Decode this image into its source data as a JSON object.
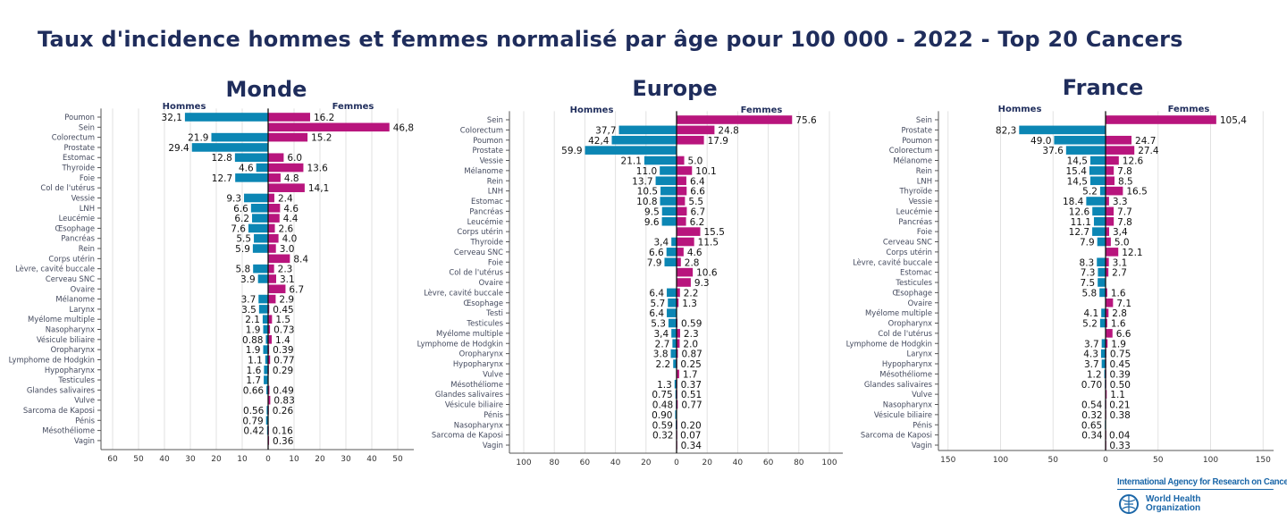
{
  "title": "Taux d'incidence hommes et femmes normalisé par âge pour 100 000 - 2022 - Top 20 Cancers",
  "colors": {
    "hommes": "#0b86b4",
    "femmes": "#b8157d",
    "title": "#1f2d5c",
    "grid": "#e2e2e2"
  },
  "logo": {
    "iarc": "International Agency for Research on Cancer",
    "who": "World Health Organization",
    "icon": "who-emblem-icon"
  },
  "chart_data": [
    {
      "type": "bar",
      "orientation": "horizontal-butterfly",
      "title": "Monde",
      "left_label": "Hommes",
      "right_label": "Femmes",
      "xlim": [
        -65,
        56
      ],
      "ticks": [
        -60,
        -50,
        -40,
        -30,
        -20,
        -10,
        0,
        10,
        20,
        30,
        40,
        50
      ],
      "tick_labels": [
        "60",
        "50",
        "40",
        "30",
        "20",
        "10",
        "0",
        "10",
        "20",
        "30",
        "40",
        "50"
      ],
      "grid": true,
      "categories": [
        "Poumon",
        "Sein",
        "Colorectum",
        "Prostate",
        "Estomac",
        "Thyroide",
        "Foie",
        "Col de l'utérus",
        "Vessie",
        "LNH",
        "Leucémie",
        "Œsophage",
        "Pancréas",
        "Rein",
        "Corps utérin",
        "Lèvre, cavité buccale",
        "Cerveau SNC",
        "Ovaire",
        "Mélanome",
        "Larynx",
        "Myélome multiple",
        "Nasopharynx",
        "Vésicule biliaire",
        "Oropharynx",
        "Lymphome de Hodgkin",
        "Hypopharynx",
        "Testicules",
        "Glandes salivaires",
        "Vulve",
        "Sarcoma de Kaposi",
        "Pénis",
        "Mésothéliome",
        "Vagin"
      ],
      "series": [
        {
          "name": "Hommes",
          "values": [
            32.1,
            null,
            21.9,
            29.4,
            12.8,
            4.6,
            12.7,
            null,
            9.3,
            6.6,
            6.2,
            7.6,
            5.5,
            5.9,
            null,
            5.8,
            3.9,
            null,
            3.7,
            3.5,
            2.1,
            1.9,
            0.88,
            1.9,
            1.1,
            1.6,
            1.7,
            0.66,
            null,
            0.56,
            0.79,
            0.42,
            null
          ],
          "labels": [
            "32,1",
            "",
            "21.9",
            "29.4",
            "12.8",
            "4.6",
            "12.7",
            "",
            "9.3",
            "6.6",
            "6.2",
            "7.6",
            "5.5",
            "5.9",
            "",
            "5.8",
            "3.9",
            "",
            "3.7",
            "3.5",
            "2.1",
            "1.9",
            "0.88",
            "1.9",
            "1.1",
            "1.6",
            "1.7",
            "0.66",
            "",
            "0.56",
            "0.79",
            "0.42",
            ""
          ]
        },
        {
          "name": "Femmes",
          "values": [
            16.2,
            46.8,
            15.2,
            null,
            6.0,
            13.6,
            4.8,
            14.1,
            2.4,
            4.6,
            4.4,
            2.6,
            4.0,
            3.0,
            8.4,
            2.3,
            3.1,
            6.7,
            2.9,
            0.45,
            1.5,
            0.73,
            1.4,
            0.39,
            0.77,
            0.29,
            null,
            0.49,
            0.83,
            0.26,
            null,
            0.16,
            0.36
          ],
          "labels": [
            "16.2",
            "46,8",
            "15.2",
            "",
            "6.0",
            "13.6",
            "4.8",
            "14,1",
            "2.4",
            "4.6",
            "4.4",
            "2.6",
            "4.0",
            "3.0",
            "8.4",
            "2.3",
            "3.1",
            "6.7",
            "2.9",
            "0.45",
            "1.5",
            "0.73",
            "1.4",
            "0.39",
            "0.77",
            "0.29",
            "",
            "0.49",
            "0.83",
            "0.26",
            "",
            "0.16",
            "0.36"
          ]
        }
      ]
    },
    {
      "type": "bar",
      "orientation": "horizontal-butterfly",
      "title": "Europe",
      "left_label": "Hommes",
      "right_label": "Femmes",
      "xlim": [
        -110,
        110
      ],
      "ticks": [
        -100,
        -80,
        -60,
        -40,
        -20,
        0,
        20,
        40,
        60,
        80,
        100
      ],
      "tick_labels": [
        "100",
        "80",
        "60",
        "40",
        "20",
        "0",
        "20",
        "40",
        "60",
        "80",
        "100"
      ],
      "grid": true,
      "categories": [
        "Sein",
        "Colorectum",
        "Poumon",
        "Prostate",
        "Vessie",
        "Mélanome",
        "Rein",
        "LNH",
        "Estomac",
        "Pancréas",
        "Leucémie",
        "Corps utérin",
        "Thyroide",
        "Cerveau SNC",
        "Foie",
        "Col de l'utérus",
        "Ovaire",
        "Lèvre, cavité buccale",
        "Œsophage",
        "Testi",
        "Testicules",
        "Myélome multiple",
        "Lymphome de Hodgkin",
        "Oropharynx",
        "Hypopharynx",
        "Vulve",
        "Mésothéliome",
        "Glandes salivaires",
        "Vésicule biliaire",
        "Pénis",
        "Nasopharynx",
        "Sarcoma de Kaposi",
        "Vagin"
      ],
      "series": [
        {
          "name": "Hommes",
          "values": [
            null,
            37.7,
            42.4,
            59.9,
            21.1,
            11.0,
            13.7,
            10.5,
            10.8,
            9.5,
            9.6,
            null,
            3.4,
            6.6,
            7.9,
            null,
            null,
            6.4,
            5.7,
            6.4,
            5.3,
            3.4,
            2.7,
            3.8,
            2.2,
            null,
            1.3,
            0.75,
            0.48,
            0.9,
            0.59,
            0.32,
            null
          ],
          "labels": [
            "",
            "37,7",
            "42,4",
            "59.9",
            "21.1",
            "11.0",
            "13.7",
            "10.5",
            "10.8",
            "9.5",
            "9.6",
            "",
            "3,4",
            "6.6",
            "7.9",
            "",
            "",
            "6.4",
            "5.7",
            "6.4",
            "5.3",
            "3,4",
            "2.7",
            "3.8",
            "2.2",
            "",
            "1.3",
            "0.75",
            "0.48",
            "0.90",
            "0.59",
            "0.32",
            ""
          ]
        },
        {
          "name": "Femmes",
          "values": [
            75.6,
            24.8,
            17.9,
            null,
            5.0,
            10.1,
            6.4,
            6.6,
            5.5,
            6.7,
            6.2,
            15.5,
            11.5,
            4.6,
            2.8,
            10.6,
            9.3,
            2.2,
            1.3,
            null,
            0.59,
            2.3,
            2.0,
            0.87,
            0.25,
            1.7,
            0.37,
            0.51,
            0.77,
            null,
            0.2,
            0.07,
            0.34
          ],
          "labels": [
            "75.6",
            "24.8",
            "17.9",
            "",
            "5.0",
            "10.1",
            "6.4",
            "6.6",
            "5.5",
            "6.7",
            "6.2",
            "15.5",
            "11.5",
            "4.6",
            "2.8",
            "10.6",
            "9.3",
            "2.2",
            "1.3",
            "",
            "0.59",
            "2.3",
            "2.0",
            "0.87",
            "0.25",
            "1.7",
            "0.37",
            "0.51",
            "0.77",
            "",
            "0.20",
            "0.07",
            "0.34"
          ]
        }
      ]
    },
    {
      "type": "bar",
      "orientation": "horizontal-butterfly",
      "title": "France",
      "left_label": "Hommes",
      "right_label": "Femmes",
      "xlim": [
        -160,
        160
      ],
      "ticks": [
        -150,
        -100,
        -50,
        0,
        50,
        100,
        150
      ],
      "tick_labels": [
        "150",
        "100",
        "50",
        "0",
        "50",
        "100",
        "150"
      ],
      "grid": true,
      "categories": [
        "Sein",
        "Prostate",
        "Poumon",
        "Colorectum",
        "Mélanome",
        "Rein",
        "LNH",
        "Thyroïde",
        "Vessie",
        "Leucémie",
        "Pancréas",
        "Foie",
        "Cerveau SNC",
        "Corps utérin",
        "Lèvre, cavité buccale",
        "Estomac",
        "Testicules",
        "Œsophage",
        "Ovaire",
        "Myélome multiple",
        "Oropharynx",
        "Col de l'utérus",
        "Lymphome de Hodgkin",
        "Larynx",
        "Hypopharynx",
        "Mésothéliome",
        "Glandes salivaires",
        "Vulve",
        "Nasopharynx",
        "Vésicule biliaire",
        "Pénis",
        "Sarcoma de Kaposi",
        "Vagin"
      ],
      "series": [
        {
          "name": "Hommes",
          "values": [
            null,
            82.3,
            49.0,
            37.6,
            14.5,
            15.4,
            14.5,
            5.2,
            18.4,
            12.6,
            11.1,
            12.7,
            7.9,
            null,
            8.3,
            7.3,
            7.5,
            5.8,
            null,
            4.1,
            5.2,
            null,
            3.7,
            4.3,
            3.7,
            1.2,
            0.7,
            null,
            0.54,
            0.32,
            0.65,
            0.34,
            null
          ],
          "labels": [
            "",
            "82,3",
            "49.0",
            "37.6",
            "14,5",
            "15.4",
            "14,5",
            "5.2",
            "18.4",
            "12.6",
            "11.1",
            "12.7",
            "7.9",
            "",
            "8.3",
            "7.3",
            "7.5",
            "5.8",
            "",
            "4.1",
            "5.2",
            "",
            "3.7",
            "4.3",
            "3.7",
            "1.2",
            "0.70",
            "",
            "0.54",
            "0.32",
            "0.65",
            "0.34",
            ""
          ]
        },
        {
          "name": "Femmes",
          "values": [
            105.4,
            null,
            24.7,
            27.4,
            12.6,
            7.8,
            8.5,
            16.5,
            3.3,
            7.7,
            7.8,
            3.4,
            5.0,
            12.1,
            3.1,
            2.7,
            null,
            1.6,
            7.1,
            2.8,
            1.6,
            6.6,
            1.9,
            0.75,
            0.45,
            0.39,
            0.5,
            1.1,
            0.21,
            0.38,
            null,
            0.04,
            0.33
          ],
          "labels": [
            "105,4",
            "",
            "24.7",
            "27.4",
            "12.6",
            "7.8",
            "8.5",
            "16.5",
            "3.3",
            "7.7",
            "7.8",
            "3,4",
            "5.0",
            "12.1",
            "3.1",
            "2.7",
            "",
            "1.6",
            "7.1",
            "2.8",
            "1.6",
            "6.6",
            "1.9",
            "0.75",
            "0.45",
            "0.39",
            "0.50",
            "1.1",
            "0.21",
            "0.38",
            "",
            "0.04",
            "0.33"
          ]
        }
      ]
    }
  ]
}
